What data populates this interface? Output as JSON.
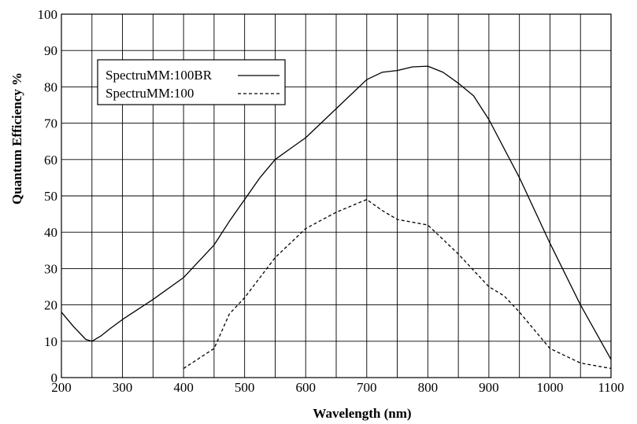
{
  "chart_data": {
    "type": "line",
    "xlabel": "Wavelength (nm)",
    "ylabel": "Quantum Efficiency %",
    "xlim": [
      200,
      1100
    ],
    "ylim": [
      0,
      100
    ],
    "xticks": [
      200,
      300,
      400,
      500,
      600,
      700,
      800,
      900,
      1000,
      1100
    ],
    "yticks": [
      0,
      10,
      20,
      30,
      40,
      50,
      60,
      70,
      80,
      90,
      100
    ],
    "x_minor_step": 50,
    "grid": true,
    "legend_position": "top-left",
    "series": [
      {
        "name": "SpectruMM:100BR",
        "style": "solid",
        "color": "#000000",
        "points": [
          [
            200,
            18
          ],
          [
            220,
            14
          ],
          [
            240,
            10.5
          ],
          [
            250,
            10
          ],
          [
            265,
            11.5
          ],
          [
            280,
            13.5
          ],
          [
            300,
            16
          ],
          [
            350,
            21.5
          ],
          [
            400,
            27.5
          ],
          [
            450,
            36.5
          ],
          [
            475,
            43
          ],
          [
            500,
            49
          ],
          [
            525,
            55
          ],
          [
            550,
            60
          ],
          [
            575,
            63
          ],
          [
            600,
            66
          ],
          [
            650,
            74
          ],
          [
            675,
            78
          ],
          [
            700,
            82
          ],
          [
            725,
            84
          ],
          [
            750,
            84.5
          ],
          [
            775,
            85.5
          ],
          [
            800,
            85.7
          ],
          [
            825,
            84
          ],
          [
            850,
            81
          ],
          [
            875,
            77.5
          ],
          [
            900,
            71
          ],
          [
            950,
            55
          ],
          [
            1000,
            37
          ],
          [
            1050,
            20
          ],
          [
            1100,
            5
          ]
        ]
      },
      {
        "name": "SpectruMM:100",
        "style": "dashed",
        "color": "#000000",
        "points": [
          [
            400,
            2.5
          ],
          [
            450,
            8
          ],
          [
            475,
            17.5
          ],
          [
            500,
            22
          ],
          [
            550,
            33
          ],
          [
            600,
            41
          ],
          [
            650,
            45.5
          ],
          [
            700,
            49
          ],
          [
            725,
            46
          ],
          [
            750,
            43.5
          ],
          [
            800,
            42
          ],
          [
            850,
            34
          ],
          [
            900,
            25
          ],
          [
            925,
            22.5
          ],
          [
            950,
            18
          ],
          [
            1000,
            8
          ],
          [
            1050,
            4
          ],
          [
            1100,
            2.5
          ]
        ]
      }
    ]
  }
}
